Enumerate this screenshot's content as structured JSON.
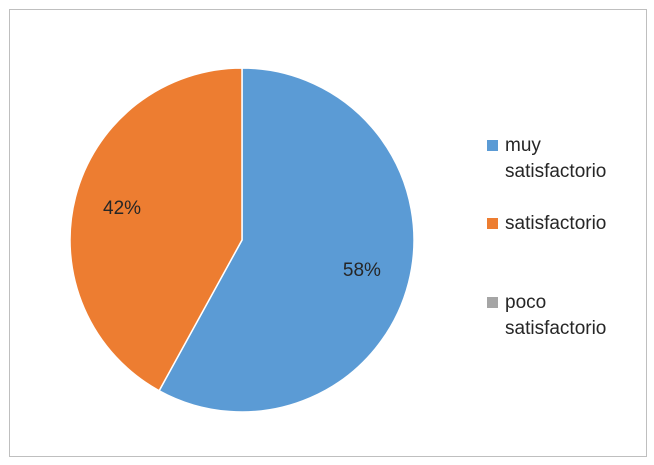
{
  "chart_data": {
    "type": "pie",
    "title": "",
    "categories": [
      "muy satisfactorio",
      "satisfactorio",
      "poco satisfactorio"
    ],
    "values": [
      58,
      42,
      0
    ],
    "data_labels": [
      "58%",
      "42%",
      ""
    ],
    "colors": [
      "#5b9bd5",
      "#ed7d31",
      "#a5a5a5"
    ],
    "legend_position": "right"
  },
  "legend": {
    "items": [
      {
        "label": "muy satisfactorio",
        "color": "#5b9bd5"
      },
      {
        "label": "satisfactorio",
        "color": "#ed7d31"
      },
      {
        "label": "poco satisfactorio",
        "color": "#a5a5a5"
      }
    ]
  }
}
